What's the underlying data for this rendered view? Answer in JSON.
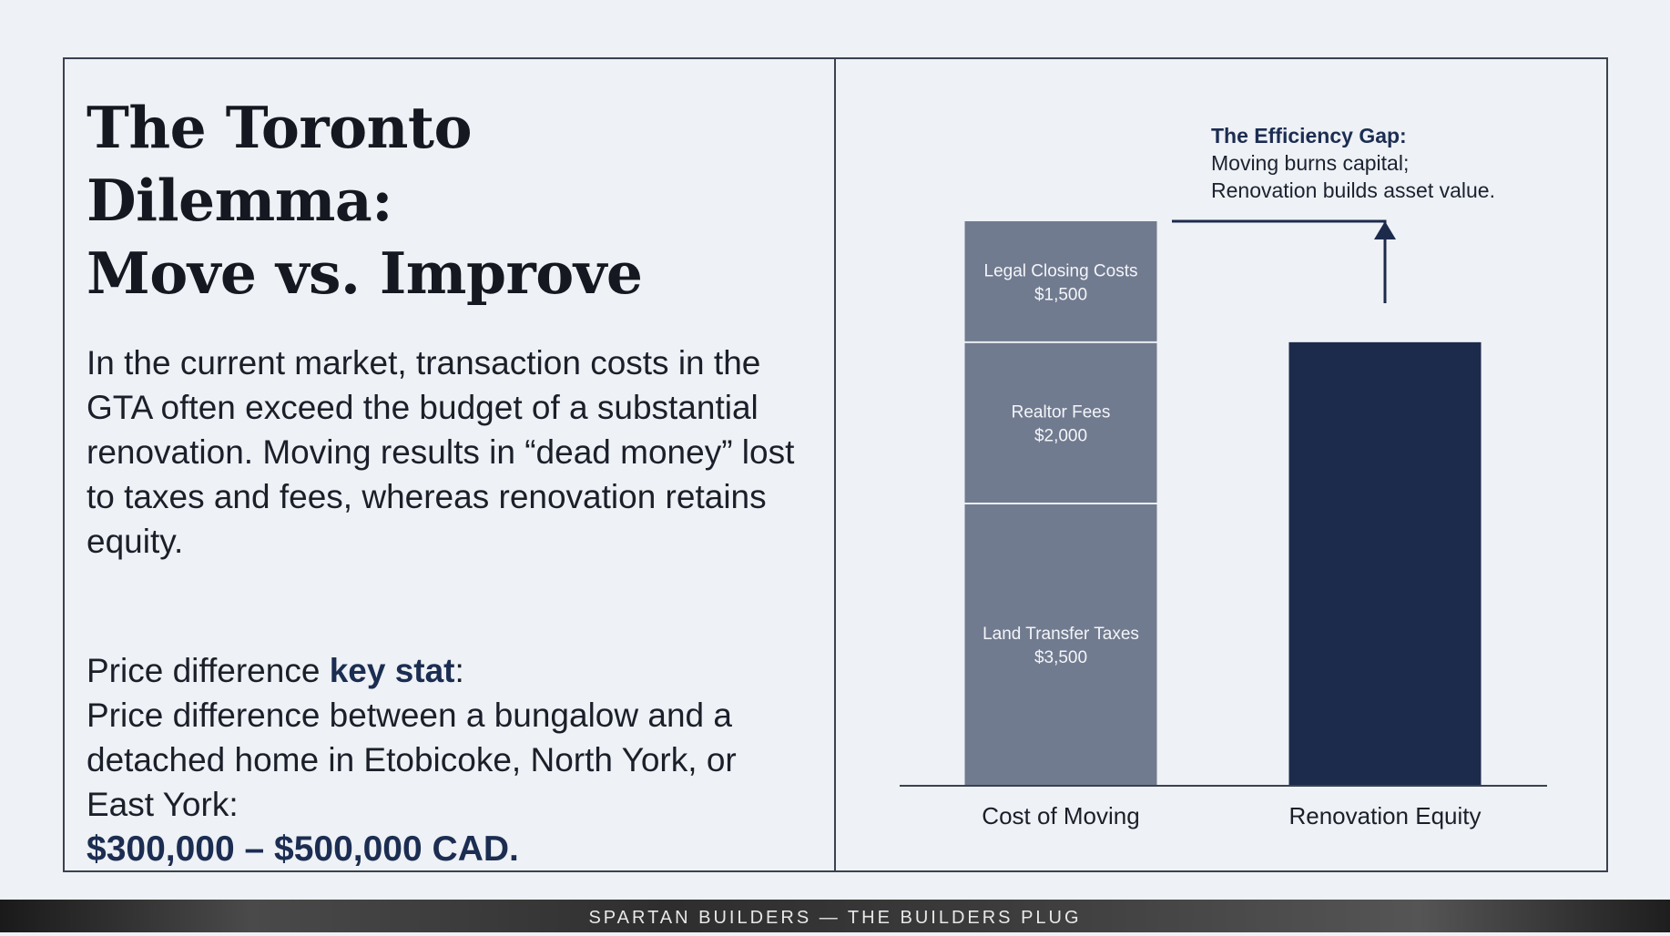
{
  "slide": {
    "title_line1": "The Toronto Dilemma:",
    "title_line2": "Move vs. Improve",
    "intro": "In the current market, transaction costs in the GTA often exceed the budget of a substantial renovation. Moving results in “dead money” lost to taxes and fees, whereas renovation retains equity.",
    "stat_prefix": "Price difference ",
    "stat_key": "key stat",
    "stat_colon": ":",
    "stat_body": "Price difference between a bungalow and a detached home in Etobicoke, North York, or East York:",
    "stat_range": "$300,000 – $500,000 CAD."
  },
  "annotation": {
    "title": "The Efficiency Gap:",
    "line1": "Moving burns capital;",
    "line2": "Renovation builds asset value."
  },
  "chart_data": {
    "type": "bar",
    "stacked": true,
    "categories": [
      "Cost of Moving",
      "Renovation Equity"
    ],
    "series": [
      {
        "name": "Land Transfer Taxes",
        "label": "$3,500",
        "values": [
          3500,
          0
        ]
      },
      {
        "name": "Realtor Fees",
        "label": "$2,000",
        "values": [
          2000,
          0
        ]
      },
      {
        "name": "Legal Closing Costs",
        "label": "$1,500",
        "values": [
          1500,
          0
        ]
      },
      {
        "name": "Renovation Equity",
        "label": "",
        "values": [
          0,
          5500
        ]
      }
    ],
    "title": "",
    "xlabel": "",
    "ylabel": "",
    "ylim": [
      0,
      7000
    ],
    "colors": {
      "moving": "#717b8f",
      "renovation": "#1c2a4c",
      "separator": "#e9ecf2",
      "axis": "#3a4250"
    }
  },
  "footer": {
    "text": "SPARTAN BUILDERS — THE BUILDERS PLUG"
  }
}
